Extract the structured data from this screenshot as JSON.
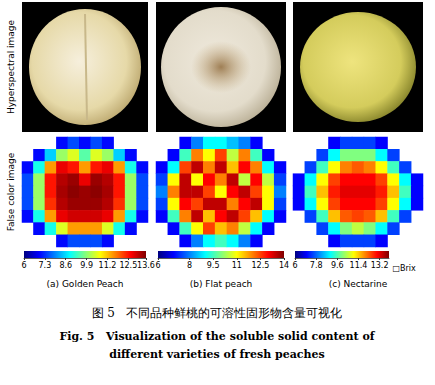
{
  "row_labels": [
    "Hyperspectral image",
    "False color image"
  ],
  "chart_data": [
    {
      "type": "heatmap",
      "title": "(a) Golden Peach",
      "cells": [
        [
          null,
          null,
          null,
          7,
          7.5,
          7,
          7.5,
          7,
          null,
          null,
          null
        ],
        [
          null,
          7,
          8.5,
          10,
          10.5,
          9.5,
          10.5,
          10,
          8.5,
          7,
          null
        ],
        [
          7,
          9,
          11.5,
          12.8,
          12.5,
          11.5,
          12.5,
          12.8,
          11.5,
          9,
          7
        ],
        [
          7.5,
          10,
          12.5,
          13.2,
          13.4,
          12.8,
          13.4,
          13.2,
          12.5,
          10,
          7.5
        ],
        [
          7.5,
          10,
          12.5,
          13.3,
          13.5,
          13.4,
          13.5,
          13.3,
          12.5,
          10,
          7.5
        ],
        [
          7.5,
          10,
          12.3,
          13.2,
          13.4,
          13.4,
          13.4,
          13.2,
          12.3,
          10,
          7.5
        ],
        [
          7,
          9,
          11.5,
          12.8,
          13,
          13,
          13,
          12.8,
          11.5,
          9,
          7
        ],
        [
          null,
          7,
          9,
          10.5,
          11.5,
          11.5,
          11.5,
          10.5,
          9,
          7,
          null
        ],
        [
          null,
          null,
          null,
          7,
          7.5,
          7.5,
          7.5,
          7,
          null,
          null,
          null
        ]
      ],
      "colorbar_range": [
        6,
        13.6
      ],
      "colorbar_ticks": [
        6,
        7.3,
        8.6,
        9.9,
        11.2,
        12.5,
        13.6
      ]
    },
    {
      "type": "heatmap",
      "title": "(b) Flat peach",
      "cells": [
        [
          null,
          null,
          7,
          8,
          9,
          9,
          8.5,
          8,
          7,
          null,
          null
        ],
        [
          null,
          7,
          9.5,
          12,
          11,
          12.5,
          10.5,
          12,
          9.5,
          7,
          null
        ],
        [
          7,
          9,
          12.5,
          13.5,
          12,
          13.5,
          11.5,
          13,
          12,
          9,
          7
        ],
        [
          7.5,
          11,
          13.5,
          11,
          13,
          12,
          13.5,
          10.5,
          13,
          10.5,
          7.5
        ],
        [
          8,
          12,
          13.5,
          13.5,
          12.5,
          11,
          13,
          13.5,
          12.5,
          11,
          8
        ],
        [
          7.5,
          11,
          13,
          12.5,
          13.5,
          13.5,
          12,
          13,
          13.5,
          11,
          7.5
        ],
        [
          7,
          9.5,
          12,
          13.5,
          11.5,
          13,
          13.5,
          12.5,
          11.5,
          9,
          7
        ],
        [
          null,
          7,
          9.5,
          11,
          12.5,
          11.5,
          12,
          10.5,
          9,
          7,
          null
        ],
        [
          null,
          null,
          7,
          8,
          9,
          9.5,
          9,
          8,
          7,
          null,
          null
        ]
      ],
      "colorbar_range": [
        6,
        14
      ],
      "colorbar_ticks": [
        6,
        8,
        9.5,
        11,
        12.5,
        14
      ]
    },
    {
      "type": "heatmap",
      "title": "(c) Nectarine",
      "cells": [
        [
          null,
          null,
          null,
          7,
          7.5,
          7.5,
          7.5,
          7,
          null,
          null,
          null
        ],
        [
          null,
          null,
          7.5,
          9,
          10,
          10,
          10,
          9,
          7.5,
          null,
          null
        ],
        [
          null,
          7.5,
          9.5,
          11,
          12,
          12.3,
          12,
          11,
          9.5,
          7.5,
          null
        ],
        [
          7,
          9,
          11,
          12.5,
          13,
          13,
          13,
          12.5,
          11,
          9,
          7
        ],
        [
          7,
          9.5,
          11.5,
          12.8,
          13.2,
          13.2,
          13.2,
          12.8,
          11.5,
          9.5,
          7
        ],
        [
          7,
          9,
          11,
          12.5,
          13,
          13,
          13,
          12.5,
          11,
          9,
          7
        ],
        [
          null,
          7.5,
          9.5,
          11.5,
          12.3,
          12.5,
          12.3,
          11.5,
          9.5,
          7.5,
          null
        ],
        [
          null,
          null,
          7.5,
          9,
          10,
          10.5,
          10,
          9,
          7.5,
          null,
          null
        ],
        [
          null,
          null,
          null,
          7,
          7.5,
          7.5,
          7.5,
          7,
          null,
          null,
          null
        ]
      ],
      "colorbar_range": [
        6,
        14
      ],
      "colorbar_ticks": [
        6,
        7.8,
        9.6,
        11.4,
        13.2
      ],
      "colorbar_unit": "□Brix"
    }
  ],
  "caption": {
    "zh": "图 5   不同品种鲜桃的可溶性固形物含量可视化",
    "en": [
      "Fig. 5   Visualization of the soluble solid content of",
      "different varieties of fresh peaches"
    ]
  }
}
